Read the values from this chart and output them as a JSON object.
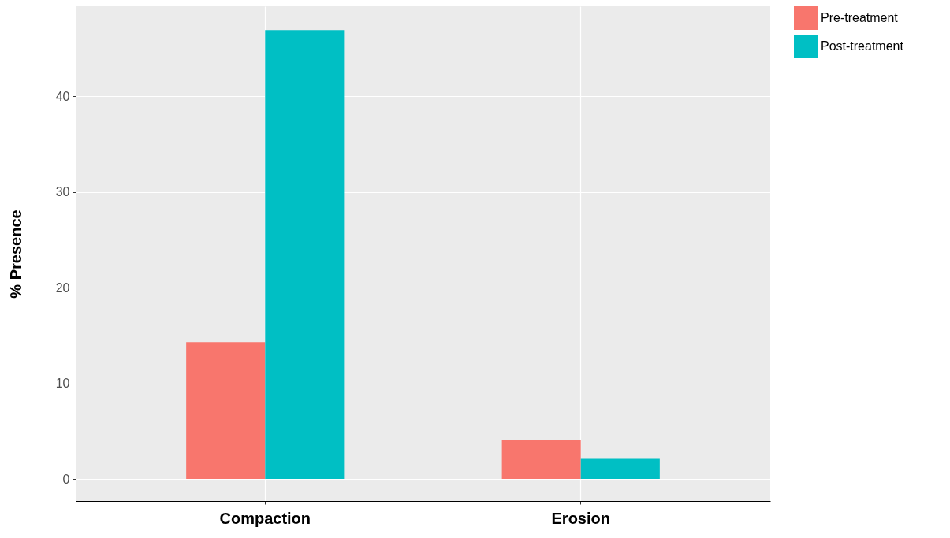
{
  "chart_data": {
    "type": "bar",
    "ylabel": "% Presence",
    "categories": [
      "Compaction",
      "Erosion"
    ],
    "series": [
      {
        "name": "Pre-treatment",
        "color": "#f8766d",
        "values": [
          14.3,
          4.1
        ]
      },
      {
        "name": "Post-treatment",
        "color": "#00bfc4",
        "values": [
          46.9,
          2.1
        ]
      }
    ],
    "ylim": [
      -2.3,
      49.4
    ],
    "yticks": [
      0,
      10,
      20,
      30,
      40
    ],
    "grid": true,
    "legend": "right"
  }
}
